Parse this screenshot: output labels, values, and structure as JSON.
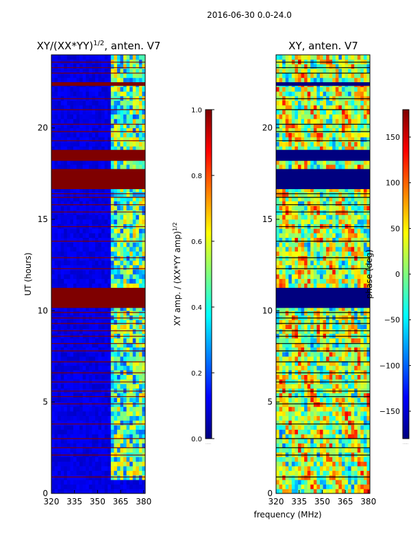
{
  "figure": {
    "suptitle": "2016-06-30 0.0-24.0",
    "shared_xlabel": "frequency (MHz)"
  },
  "colors": {
    "jet": [
      "#00007f",
      "#0000ff",
      "#007fff",
      "#00ffff",
      "#7fff7f",
      "#ffff00",
      "#ff7f00",
      "#ff0000",
      "#7f0000"
    ],
    "background": "#ffffff",
    "axis": "#000000"
  },
  "chart_data": [
    {
      "type": "heatmap",
      "title_main": "XY/(XX*YY)",
      "title_exp": "1/2",
      "title_suffix": ", anten. V7",
      "xlabel": "",
      "ylabel": "UT (hours)",
      "xlim": [
        320,
        381
      ],
      "ylim": [
        0,
        24
      ],
      "xticks": [
        320,
        335,
        350,
        365,
        380
      ],
      "yticks": [
        0,
        5,
        10,
        15,
        20
      ],
      "colorbar": {
        "label_main": "XY amp. / (XX*YY amp)",
        "label_exp": "1/2",
        "range": [
          0.0,
          1.0
        ],
        "ticks": [
          "0.0",
          "0.2",
          "0.4",
          "0.6",
          "0.8",
          "1.0"
        ],
        "tick_values": [
          0.0,
          0.2,
          0.4,
          0.6,
          0.8,
          1.0
        ],
        "bottom_note": "....."
      },
      "background_value": 0.07,
      "active_band_mhz": [
        358,
        381
      ],
      "active_band_value": 0.45,
      "flag_bands_ut": [
        {
          "from": 10.15,
          "to": 11.25,
          "value": 1.0
        },
        {
          "from": 16.65,
          "to": 17.75,
          "value": 1.0
        },
        {
          "from": 18.2,
          "to": 18.8,
          "value": 1.0
        },
        {
          "from": 22.3,
          "to": 22.5,
          "value": 1.0
        }
      ],
      "flag_lines_ut": [
        0.9,
        2.1,
        2.5,
        3.0,
        3.8,
        4.9,
        5.3,
        5.6,
        6.1,
        6.6,
        7.2,
        7.8,
        8.2,
        8.6,
        8.9,
        9.3,
        9.6,
        9.9,
        12.3,
        12.9,
        13.8,
        14.6,
        15.4,
        15.8,
        16.2,
        16.4,
        19.3,
        19.8,
        20.2,
        21.0,
        21.6,
        23.0,
        23.3,
        23.6
      ]
    },
    {
      "type": "heatmap",
      "title_main": "XY, anten. V7",
      "xlabel": "frequency (MHz)",
      "ylabel": "",
      "xlim": [
        320,
        381
      ],
      "ylim": [
        0,
        24
      ],
      "xticks": [
        320,
        335,
        350,
        365,
        380
      ],
      "yticks": [
        0,
        5,
        10,
        15,
        20
      ],
      "colorbar": {
        "label_main": "phase (deg)",
        "range": [
          -180,
          180
        ],
        "ticks": [
          "−150",
          "−100",
          "−50",
          "0",
          "50",
          "100",
          "150"
        ],
        "tick_values": [
          -150,
          -100,
          -50,
          0,
          50,
          100,
          150
        ],
        "bottom_note": "....."
      },
      "background_value": 20,
      "flag_bands_ut": [
        {
          "from": 10.15,
          "to": 11.25,
          "value": -180
        },
        {
          "from": 16.65,
          "to": 17.75,
          "value": -180
        },
        {
          "from": 18.2,
          "to": 18.8,
          "value": -180
        },
        {
          "from": 22.3,
          "to": 22.5,
          "value": -180
        }
      ],
      "flag_lines_ut": [
        0.9,
        2.1,
        2.5,
        3.0,
        3.8,
        4.9,
        5.3,
        5.6,
        6.1,
        6.6,
        7.2,
        7.8,
        8.2,
        8.6,
        8.9,
        9.3,
        9.6,
        9.9,
        12.3,
        12.9,
        13.8,
        14.6,
        15.4,
        15.8,
        16.2,
        16.4,
        19.3,
        19.8,
        20.2,
        21.0,
        21.6,
        23.0,
        23.3,
        23.6
      ]
    }
  ]
}
